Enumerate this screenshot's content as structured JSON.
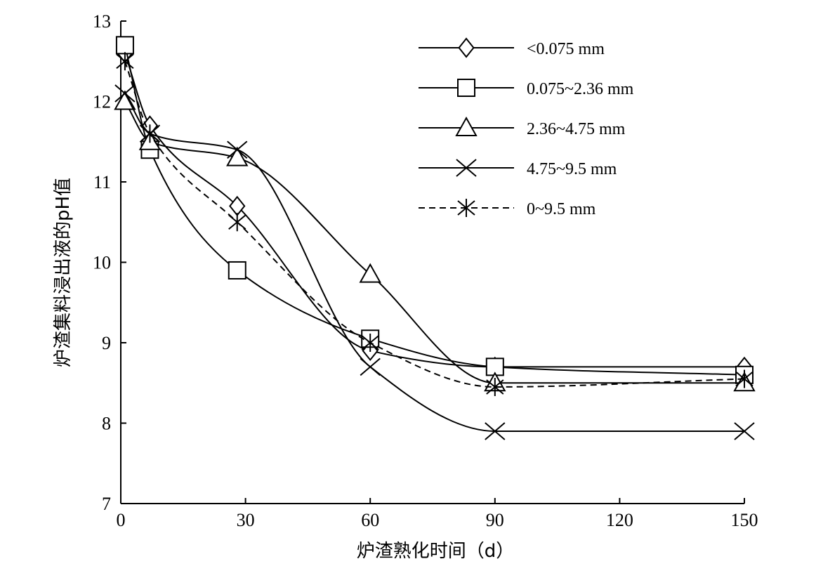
{
  "chart_data": {
    "type": "line",
    "xlabel": "炉渣熟化时间（d）",
    "ylabel": "炉渣集料浸出液的pH值",
    "xlim": [
      0,
      150
    ],
    "ylim": [
      7,
      13
    ],
    "xticks": [
      "0",
      "30",
      "60",
      "90",
      "120",
      "150"
    ],
    "yticks": [
      "7",
      "8",
      "9",
      "10",
      "11",
      "12",
      "13"
    ],
    "x": [
      1,
      7,
      28,
      60,
      90,
      150
    ],
    "legend_position": "top-right",
    "series": [
      {
        "name": "<0.075 mm",
        "marker": "diamond",
        "dash": "solid",
        "values": [
          12.6,
          11.7,
          10.7,
          8.9,
          8.7,
          8.7
        ]
      },
      {
        "name": "0.075~2.36 mm",
        "marker": "square",
        "dash": "solid",
        "values": [
          12.7,
          11.4,
          9.9,
          9.05,
          8.7,
          8.6
        ]
      },
      {
        "name": "2.36~4.75 mm",
        "marker": "triangle",
        "dash": "solid",
        "values": [
          12.0,
          11.5,
          11.3,
          9.85,
          8.5,
          8.5
        ]
      },
      {
        "name": "4.75~9.5 mm",
        "marker": "x",
        "dash": "solid",
        "values": [
          12.1,
          11.6,
          11.4,
          8.7,
          7.9,
          7.9
        ]
      },
      {
        "name": "0~9.5 mm",
        "marker": "asterisk",
        "dash": "dashed",
        "values": [
          12.5,
          11.6,
          10.5,
          9.0,
          8.45,
          8.55
        ]
      }
    ]
  }
}
